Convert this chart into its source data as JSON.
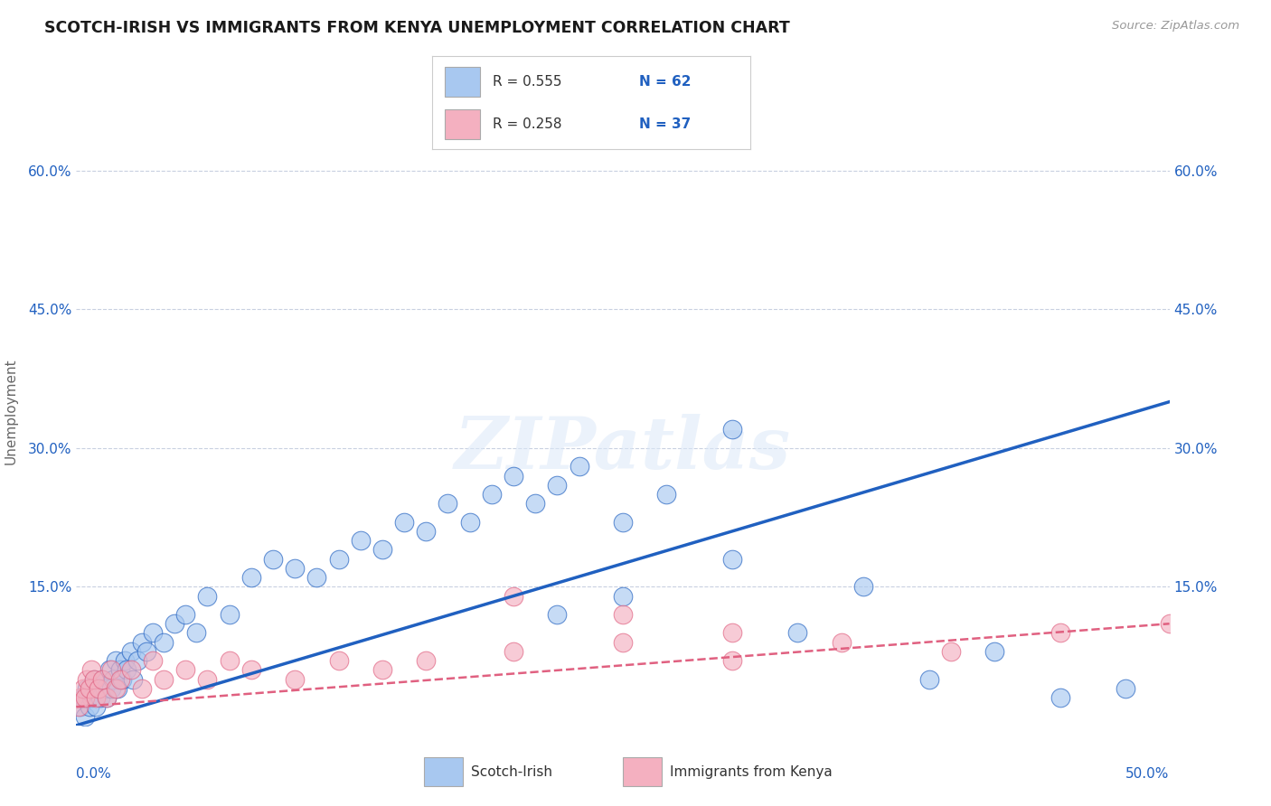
{
  "title": "SCOTCH-IRISH VS IMMIGRANTS FROM KENYA UNEMPLOYMENT CORRELATION CHART",
  "source": "Source: ZipAtlas.com",
  "ylabel": "Unemployment",
  "xlim": [
    0,
    50
  ],
  "ylim": [
    0,
    68
  ],
  "yticks": [
    0,
    15,
    30,
    45,
    60
  ],
  "ytick_labels": [
    "",
    "15.0%",
    "30.0%",
    "45.0%",
    "60.0%"
  ],
  "blue_color": "#A8C8F0",
  "pink_color": "#F4B0C0",
  "blue_line_color": "#2060C0",
  "pink_line_color": "#E06080",
  "blue_line_color_dark": "#1A50B0",
  "pink_line_color_dash": "#D05070",
  "watermark_text": "ZIPatlas",
  "legend_text": [
    [
      "R = 0.555",
      "N = 62"
    ],
    [
      "R = 0.258",
      "N = 37"
    ]
  ],
  "scotch_irish_x": [
    0.2,
    0.3,
    0.4,
    0.5,
    0.6,
    0.7,
    0.8,
    0.9,
    1.0,
    1.1,
    1.2,
    1.3,
    1.4,
    1.5,
    1.6,
    1.7,
    1.8,
    1.9,
    2.0,
    2.1,
    2.2,
    2.3,
    2.5,
    2.6,
    2.8,
    3.0,
    3.2,
    3.5,
    4.0,
    4.5,
    5.0,
    5.5,
    6.0,
    7.0,
    8.0,
    9.0,
    10.0,
    11.0,
    12.0,
    13.0,
    14.0,
    15.0,
    16.0,
    17.0,
    18.0,
    19.0,
    20.0,
    21.0,
    22.0,
    23.0,
    25.0,
    27.0,
    30.0,
    33.0,
    36.0,
    39.0,
    42.0,
    45.0,
    48.0,
    22.0,
    25.0,
    30.0
  ],
  "scotch_irish_y": [
    2,
    3,
    1,
    4,
    2,
    3,
    5,
    2,
    4,
    3,
    5,
    4,
    3,
    6,
    4,
    5,
    7,
    4,
    6,
    5,
    7,
    6,
    8,
    5,
    7,
    9,
    8,
    10,
    9,
    11,
    12,
    10,
    14,
    12,
    16,
    18,
    17,
    16,
    18,
    20,
    19,
    22,
    21,
    24,
    22,
    25,
    27,
    24,
    26,
    28,
    22,
    25,
    32,
    10,
    15,
    5,
    8,
    3,
    4,
    12,
    14,
    18
  ],
  "kenya_x": [
    0.1,
    0.2,
    0.3,
    0.4,
    0.5,
    0.6,
    0.7,
    0.8,
    0.9,
    1.0,
    1.2,
    1.4,
    1.6,
    1.8,
    2.0,
    2.5,
    3.0,
    3.5,
    4.0,
    5.0,
    6.0,
    7.0,
    8.0,
    10.0,
    12.0,
    14.0,
    16.0,
    20.0,
    25.0,
    30.0,
    35.0,
    40.0,
    45.0,
    50.0,
    20.0,
    25.0,
    30.0
  ],
  "kenya_y": [
    2,
    3,
    4,
    3,
    5,
    4,
    6,
    5,
    3,
    4,
    5,
    3,
    6,
    4,
    5,
    6,
    4,
    7,
    5,
    6,
    5,
    7,
    6,
    5,
    7,
    6,
    7,
    8,
    9,
    10,
    9,
    8,
    10,
    11,
    14,
    12,
    7
  ]
}
